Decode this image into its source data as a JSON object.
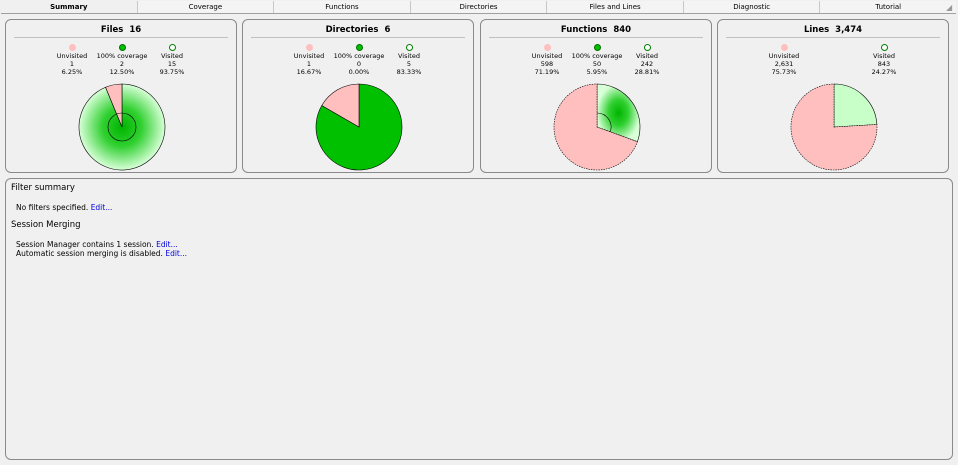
{
  "tabs": [
    {
      "label": "Summary",
      "active": true
    },
    {
      "label": "Coverage"
    },
    {
      "label": "Functions"
    },
    {
      "label": "Directories"
    },
    {
      "label": "Files and Lines"
    },
    {
      "label": "Diagnostic"
    },
    {
      "label": "Tutorial"
    }
  ],
  "colors": {
    "unvisited": "#ffbfbf",
    "full_coverage": "#00c000",
    "visited": "#ffffff",
    "partial_light": "#c8ffc8"
  },
  "cards": [
    {
      "title": "Files",
      "count": "16",
      "legend": [
        {
          "label": "Unvisited",
          "value": "1",
          "percent": "6.25%"
        },
        {
          "label": "100% coverage",
          "value": "2",
          "percent": "12.50%"
        },
        {
          "label": "Visited",
          "value": "15",
          "percent": "93.75%"
        }
      ]
    },
    {
      "title": "Directories",
      "count": "6",
      "legend": [
        {
          "label": "Unvisited",
          "value": "1",
          "percent": "16.67%"
        },
        {
          "label": "100% coverage",
          "value": "0",
          "percent": "0.00%"
        },
        {
          "label": "Visited",
          "value": "5",
          "percent": "83.33%"
        }
      ]
    },
    {
      "title": "Functions",
      "count": "840",
      "legend": [
        {
          "label": "Unvisited",
          "value": "598",
          "percent": "71.19%"
        },
        {
          "label": "100% coverage",
          "value": "50",
          "percent": "5.95%"
        },
        {
          "label": "Visited",
          "value": "242",
          "percent": "28.81%"
        }
      ]
    },
    {
      "title": "Lines",
      "count": "3,474",
      "legend": [
        {
          "label": "Unvisited",
          "value": "2,631",
          "percent": "75.73%"
        },
        {
          "label": "Visited",
          "value": "843",
          "percent": "24.27%"
        }
      ]
    }
  ],
  "filter_summary": {
    "heading": "Filter summary",
    "text": "No filters specified.",
    "edit_label": "Edit..."
  },
  "session_merging": {
    "heading": "Session Merging",
    "line1_text": "Session Manager contains 1 session.",
    "line1_edit": "Edit...",
    "line2_text": "Automatic session merging is disabled.",
    "line2_edit": "Edit..."
  }
}
